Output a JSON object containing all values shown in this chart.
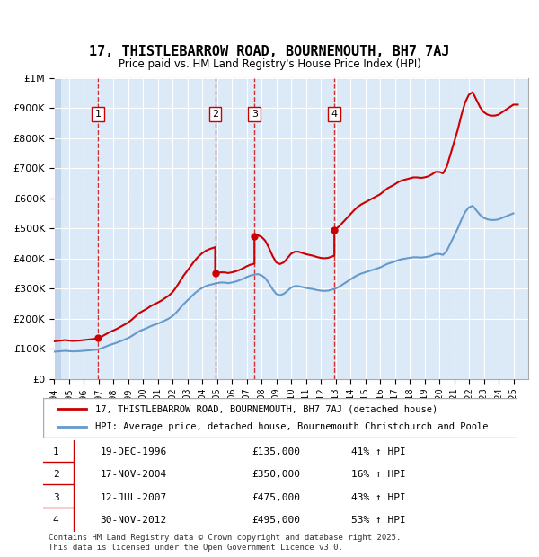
{
  "title": "17, THISTLEBARROW ROAD, BOURNEMOUTH, BH7 7AJ",
  "subtitle": "Price paid vs. HM Land Registry's House Price Index (HPI)",
  "background_color": "#dce9f7",
  "plot_bg_color": "#dce9f7",
  "hatch_color": "#c0d4ec",
  "grid_color": "#ffffff",
  "red_line_color": "#cc0000",
  "blue_line_color": "#6699cc",
  "ylim": [
    0,
    1000000
  ],
  "xlim_start": 1994,
  "xlim_end": 2026,
  "yticks": [
    0,
    100000,
    200000,
    300000,
    400000,
    500000,
    600000,
    700000,
    800000,
    900000,
    1000000
  ],
  "ytick_labels": [
    "£0",
    "£100K",
    "£200K",
    "£300K",
    "£400K",
    "£500K",
    "£600K",
    "£700K",
    "£800K",
    "£900K",
    "£1M"
  ],
  "xticks": [
    1994,
    1995,
    1996,
    1997,
    1998,
    1999,
    2000,
    2001,
    2002,
    2003,
    2004,
    2005,
    2006,
    2007,
    2008,
    2009,
    2010,
    2011,
    2012,
    2013,
    2014,
    2015,
    2016,
    2017,
    2018,
    2019,
    2020,
    2021,
    2022,
    2023,
    2024,
    2025
  ],
  "sale_dates": [
    1996.96,
    2004.88,
    2007.53,
    2012.92
  ],
  "sale_prices": [
    135000,
    350000,
    475000,
    495000
  ],
  "sale_labels": [
    "1",
    "2",
    "3",
    "4"
  ],
  "legend_entries": [
    "17, THISTLEBARROW ROAD, BOURNEMOUTH, BH7 7AJ (detached house)",
    "HPI: Average price, detached house, Bournemouth Christchurch and Poole"
  ],
  "table_entries": [
    {
      "label": "1",
      "date": "19-DEC-1996",
      "price": "£135,000",
      "change": "41% ↑ HPI"
    },
    {
      "label": "2",
      "date": "17-NOV-2004",
      "price": "£350,000",
      "change": "16% ↑ HPI"
    },
    {
      "label": "3",
      "date": "12-JUL-2007",
      "price": "£475,000",
      "change": "43% ↑ HPI"
    },
    {
      "label": "4",
      "date": "30-NOV-2012",
      "price": "£495,000",
      "change": "53% ↑ HPI"
    }
  ],
  "footnote": "Contains HM Land Registry data © Crown copyright and database right 2025.\nThis data is licensed under the Open Government Licence v3.0.",
  "hpi_data": {
    "years": [
      1994.0,
      1994.25,
      1994.5,
      1994.75,
      1995.0,
      1995.25,
      1995.5,
      1995.75,
      1996.0,
      1996.25,
      1996.5,
      1996.75,
      1997.0,
      1997.25,
      1997.5,
      1997.75,
      1998.0,
      1998.25,
      1998.5,
      1998.75,
      1999.0,
      1999.25,
      1999.5,
      1999.75,
      2000.0,
      2000.25,
      2000.5,
      2000.75,
      2001.0,
      2001.25,
      2001.5,
      2001.75,
      2002.0,
      2002.25,
      2002.5,
      2002.75,
      2003.0,
      2003.25,
      2003.5,
      2003.75,
      2004.0,
      2004.25,
      2004.5,
      2004.75,
      2005.0,
      2005.25,
      2005.5,
      2005.75,
      2006.0,
      2006.25,
      2006.5,
      2006.75,
      2007.0,
      2007.25,
      2007.5,
      2007.75,
      2008.0,
      2008.25,
      2008.5,
      2008.75,
      2009.0,
      2009.25,
      2009.5,
      2009.75,
      2010.0,
      2010.25,
      2010.5,
      2010.75,
      2011.0,
      2011.25,
      2011.5,
      2011.75,
      2012.0,
      2012.25,
      2012.5,
      2012.75,
      2013.0,
      2013.25,
      2013.5,
      2013.75,
      2014.0,
      2014.25,
      2014.5,
      2014.75,
      2015.0,
      2015.25,
      2015.5,
      2015.75,
      2016.0,
      2016.25,
      2016.5,
      2016.75,
      2017.0,
      2017.25,
      2017.5,
      2017.75,
      2018.0,
      2018.25,
      2018.5,
      2018.75,
      2019.0,
      2019.25,
      2019.5,
      2019.75,
      2020.0,
      2020.25,
      2020.5,
      2020.75,
      2021.0,
      2021.25,
      2021.5,
      2021.75,
      2022.0,
      2022.25,
      2022.5,
      2022.75,
      2023.0,
      2023.25,
      2023.5,
      2023.75,
      2024.0,
      2024.25,
      2024.5,
      2024.75,
      2025.0
    ],
    "values": [
      90000,
      91000,
      92000,
      93000,
      92000,
      91000,
      91500,
      92000,
      93000,
      94000,
      95000,
      96000,
      98000,
      102000,
      107000,
      112000,
      116000,
      120000,
      125000,
      130000,
      135000,
      142000,
      150000,
      158000,
      163000,
      168000,
      174000,
      179000,
      183000,
      188000,
      194000,
      200000,
      208000,
      220000,
      234000,
      248000,
      260000,
      272000,
      284000,
      294000,
      302000,
      308000,
      312000,
      315000,
      318000,
      320000,
      320000,
      318000,
      320000,
      323000,
      327000,
      332000,
      338000,
      343000,
      346000,
      348000,
      344000,
      335000,
      318000,
      298000,
      282000,
      278000,
      282000,
      292000,
      303000,
      308000,
      308000,
      305000,
      302000,
      300000,
      298000,
      295000,
      293000,
      292000,
      293000,
      296000,
      300000,
      306000,
      314000,
      322000,
      330000,
      338000,
      345000,
      350000,
      354000,
      358000,
      362000,
      366000,
      370000,
      376000,
      382000,
      386000,
      390000,
      395000,
      398000,
      400000,
      402000,
      404000,
      404000,
      403000,
      404000,
      406000,
      410000,
      415000,
      415000,
      412000,
      425000,
      450000,
      475000,
      500000,
      530000,
      555000,
      570000,
      575000,
      560000,
      545000,
      535000,
      530000,
      528000,
      528000,
      530000,
      535000,
      540000,
      545000,
      550000
    ]
  },
  "red_data": {
    "years": [
      1994.0,
      1996.0,
      1996.96,
      1996.97,
      2004.0,
      2004.88,
      2004.89,
      2007.0,
      2007.53,
      2007.54,
      2012.0,
      2012.92,
      2012.93,
      2025.0
    ],
    "values": [
      95000,
      100000,
      135000,
      135000,
      300000,
      350000,
      350000,
      420000,
      475000,
      475000,
      460000,
      495000,
      495000,
      870000
    ]
  }
}
